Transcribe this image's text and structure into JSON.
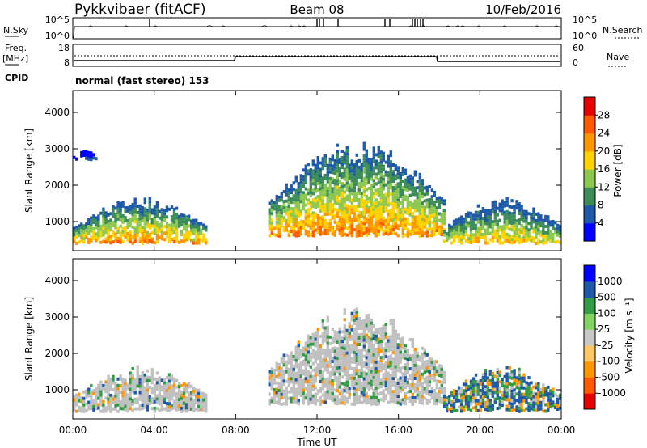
{
  "header": {
    "station": "Pykkvibaer (fitACF)",
    "beam": "Beam 08",
    "date": "10/Feb/2016"
  },
  "noise_panel": {
    "left_label": "N.Sky",
    "left_ticks": [
      "10^5",
      "10^0"
    ],
    "right_ticks": [
      "10^5",
      "10^0"
    ],
    "right_label": "N.Search"
  },
  "freq_panel": {
    "left_label_1": "Freq.",
    "left_label_2": "[MHz]",
    "left_ticks": [
      "18",
      "8"
    ],
    "right_ticks": [
      "60",
      "0"
    ],
    "right_label": "Nave",
    "cpid_label": "CPID",
    "mode_text": "normal (fast stereo) 153"
  },
  "colors": {
    "power_scale": [
      "#0000ff",
      "#1e5aa8",
      "#3c8c5a",
      "#8cc850",
      "#ffd200",
      "#ff9600",
      "#ff5a00",
      "#e60000"
    ],
    "velocity_scale": [
      "#e60000",
      "#ff5a00",
      "#ff9600",
      "#ffc864",
      "#c8c8c8",
      "#82d264",
      "#329b46",
      "#1e5aa8",
      "#0000ff"
    ],
    "ground_scatter": "#c0c0c0"
  },
  "chart_data": [
    {
      "type": "heatmap",
      "panel": "power",
      "ylabel": "Slant Range [km]",
      "xlabel": "Time UT",
      "x_ticks": [
        "00:00",
        "04:00",
        "08:00",
        "12:00",
        "16:00",
        "20:00",
        "00:00"
      ],
      "y_ticks": [
        "1000",
        "2000",
        "3000",
        "4000"
      ],
      "ylim": [
        200,
        4600
      ],
      "xlim_hours": [
        0,
        24
      ],
      "colorbar_label": "Power [dB]",
      "colorbar_ticks": [
        "4",
        "8",
        "12",
        "16",
        "20",
        "24",
        "28"
      ],
      "scatter_regions": [
        {
          "t_start": 0.0,
          "t_end": 6.6,
          "range_low": 400,
          "range_high": 1700,
          "peak_power": 28
        },
        {
          "t_start": 0.0,
          "t_end": 1.2,
          "range_low": 2700,
          "range_high": 3000,
          "peak_power": 8
        },
        {
          "t_start": 9.6,
          "t_end": 18.3,
          "range_low": 600,
          "range_high": 3300,
          "peak_power": 28
        },
        {
          "t_start": 18.2,
          "t_end": 24.0,
          "range_low": 400,
          "range_high": 1700,
          "peak_power": 24
        }
      ]
    },
    {
      "type": "heatmap",
      "panel": "velocity",
      "ylabel": "Slant Range [km]",
      "xlabel": "Time UT",
      "x_ticks": [
        "00:00",
        "04:00",
        "08:00",
        "12:00",
        "16:00",
        "20:00",
        "00:00"
      ],
      "y_ticks": [
        "1000",
        "2000",
        "3000",
        "4000"
      ],
      "ylim": [
        200,
        4600
      ],
      "xlim_hours": [
        0,
        24
      ],
      "colorbar_label": "Velocity [m s⁻¹]",
      "colorbar_ticks": [
        "1000",
        "500",
        "100",
        "25",
        "-25",
        "-100",
        "-500",
        "-1000"
      ],
      "scatter_regions": [
        {
          "t_start": 0.0,
          "t_end": 6.6,
          "range_low": 400,
          "range_high": 1700,
          "dominant_velocity": 0
        },
        {
          "t_start": 9.6,
          "t_end": 18.3,
          "range_low": 600,
          "range_high": 3300,
          "dominant_velocity": 0
        },
        {
          "t_start": 18.2,
          "t_end": 24.0,
          "range_low": 400,
          "range_high": 1700,
          "dominant_velocity": 500
        }
      ]
    }
  ]
}
